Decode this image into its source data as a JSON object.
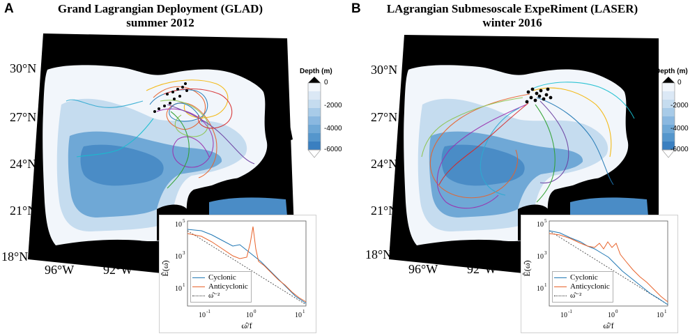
{
  "panels": [
    {
      "letter": "A",
      "title_line1": "Grand Lagrangian Deployment (GLAD)",
      "title_line2": "summer 2012",
      "lat_labels": [
        "30°N",
        "27°N",
        "24°N",
        "21°N",
        "18°N"
      ],
      "lon_labels": [
        "96°W",
        "92°W"
      ],
      "colorbar": {
        "title": "Depth (m)",
        "ticks": [
          "0",
          "-2000",
          "-4000",
          "-6000"
        ]
      },
      "inset": {
        "ylabel": "Ê(ω̂)",
        "xlabel": "ω̂/f",
        "yticks": [
          "10",
          "10",
          "10"
        ],
        "ytick_exps": [
          "5",
          "3",
          "1"
        ],
        "xticks": [
          "10",
          "10",
          "10"
        ],
        "xtick_exps": [
          "-1",
          "0",
          "1"
        ],
        "legend": [
          "Cyclonic",
          "Anticyclonic",
          "ω̂⁻²"
        ]
      }
    },
    {
      "letter": "B",
      "title_line1": "LAgrangian Submesoscale ExpeRiment (LASER)",
      "title_line2": "winter 2016",
      "lat_labels": [
        "30°N",
        "27°N",
        "24°N",
        "21°N",
        "18°N"
      ],
      "lon_labels": [
        "96°W",
        "92°W"
      ],
      "colorbar": {
        "title": "Depth (m)",
        "ticks": [
          "0",
          "-2000",
          "-4000",
          "-6000"
        ]
      },
      "inset": {
        "ylabel": "Ê(ω̂)",
        "xlabel": "ω̂/f",
        "yticks": [
          "10",
          "10",
          "10"
        ],
        "ytick_exps": [
          "5",
          "3",
          "1"
        ],
        "xticks": [
          "10",
          "10",
          "10"
        ],
        "xtick_exps": [
          "-1",
          "0",
          "1"
        ],
        "legend": [
          "Cyclonic",
          "Anticyclonic",
          "ω̂⁻²"
        ]
      }
    }
  ],
  "colors": {
    "land": "#000000",
    "shelf": "#f2f6fb",
    "slope": "#bcd7ee",
    "deep": "#5b9bd0",
    "abyss": "#3a7fc0",
    "cyclonic": "#1f77b4",
    "anticyclonic": "#e8622a",
    "reference": "#333333"
  }
}
